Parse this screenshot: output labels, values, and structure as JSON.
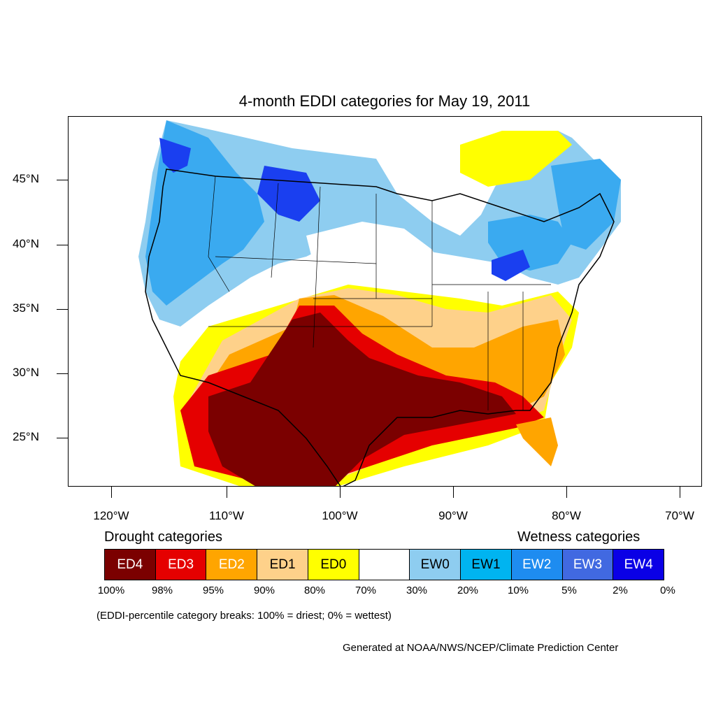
{
  "title": "4-month EDDI categories for May 19, 2011",
  "axes": {
    "lat_labels": [
      "45°N",
      "40°N",
      "35°N",
      "30°N",
      "25°N"
    ],
    "lon_labels": [
      "120°W",
      "110°W",
      "100°W",
      "90°W",
      "80°W",
      "70°W"
    ]
  },
  "legend": {
    "drought_heading": "Drought categories",
    "wetness_heading": "Wetness categories",
    "categories": [
      {
        "label": "ED4",
        "color": "#7b0000",
        "text_color": "#ffffff"
      },
      {
        "label": "ED3",
        "color": "#e50000",
        "text_color": "#ffffff"
      },
      {
        "label": "ED2",
        "color": "#ffa500",
        "text_color": "#ffffff"
      },
      {
        "label": "ED1",
        "color": "#fed18a",
        "text_color": "#000000"
      },
      {
        "label": "ED0",
        "color": "#ffff00",
        "text_color": "#000000"
      },
      {
        "label": "",
        "color": "#ffffff",
        "text_color": "#000000"
      },
      {
        "label": "EW0",
        "color": "#8ecdf0",
        "text_color": "#000000"
      },
      {
        "label": "EW1",
        "color": "#00b4f0",
        "text_color": "#000000"
      },
      {
        "label": "EW2",
        "color": "#1e8cf0",
        "text_color": "#ffffff"
      },
      {
        "label": "EW3",
        "color": "#4169e1",
        "text_color": "#ffffff"
      },
      {
        "label": "EW4",
        "color": "#0a00e6",
        "text_color": "#ffffff"
      }
    ],
    "breaks": [
      "100%",
      "98%",
      "95%",
      "90%",
      "80%",
      "70%",
      "30%",
      "20%",
      "10%",
      "5%",
      "2%",
      "0%"
    ],
    "note": "(EDDI-percentile category breaks: 100% = driest; 0% = wettest)"
  },
  "credit": "Generated at NOAA/NWS/NCEP/Climate Prediction Center"
}
